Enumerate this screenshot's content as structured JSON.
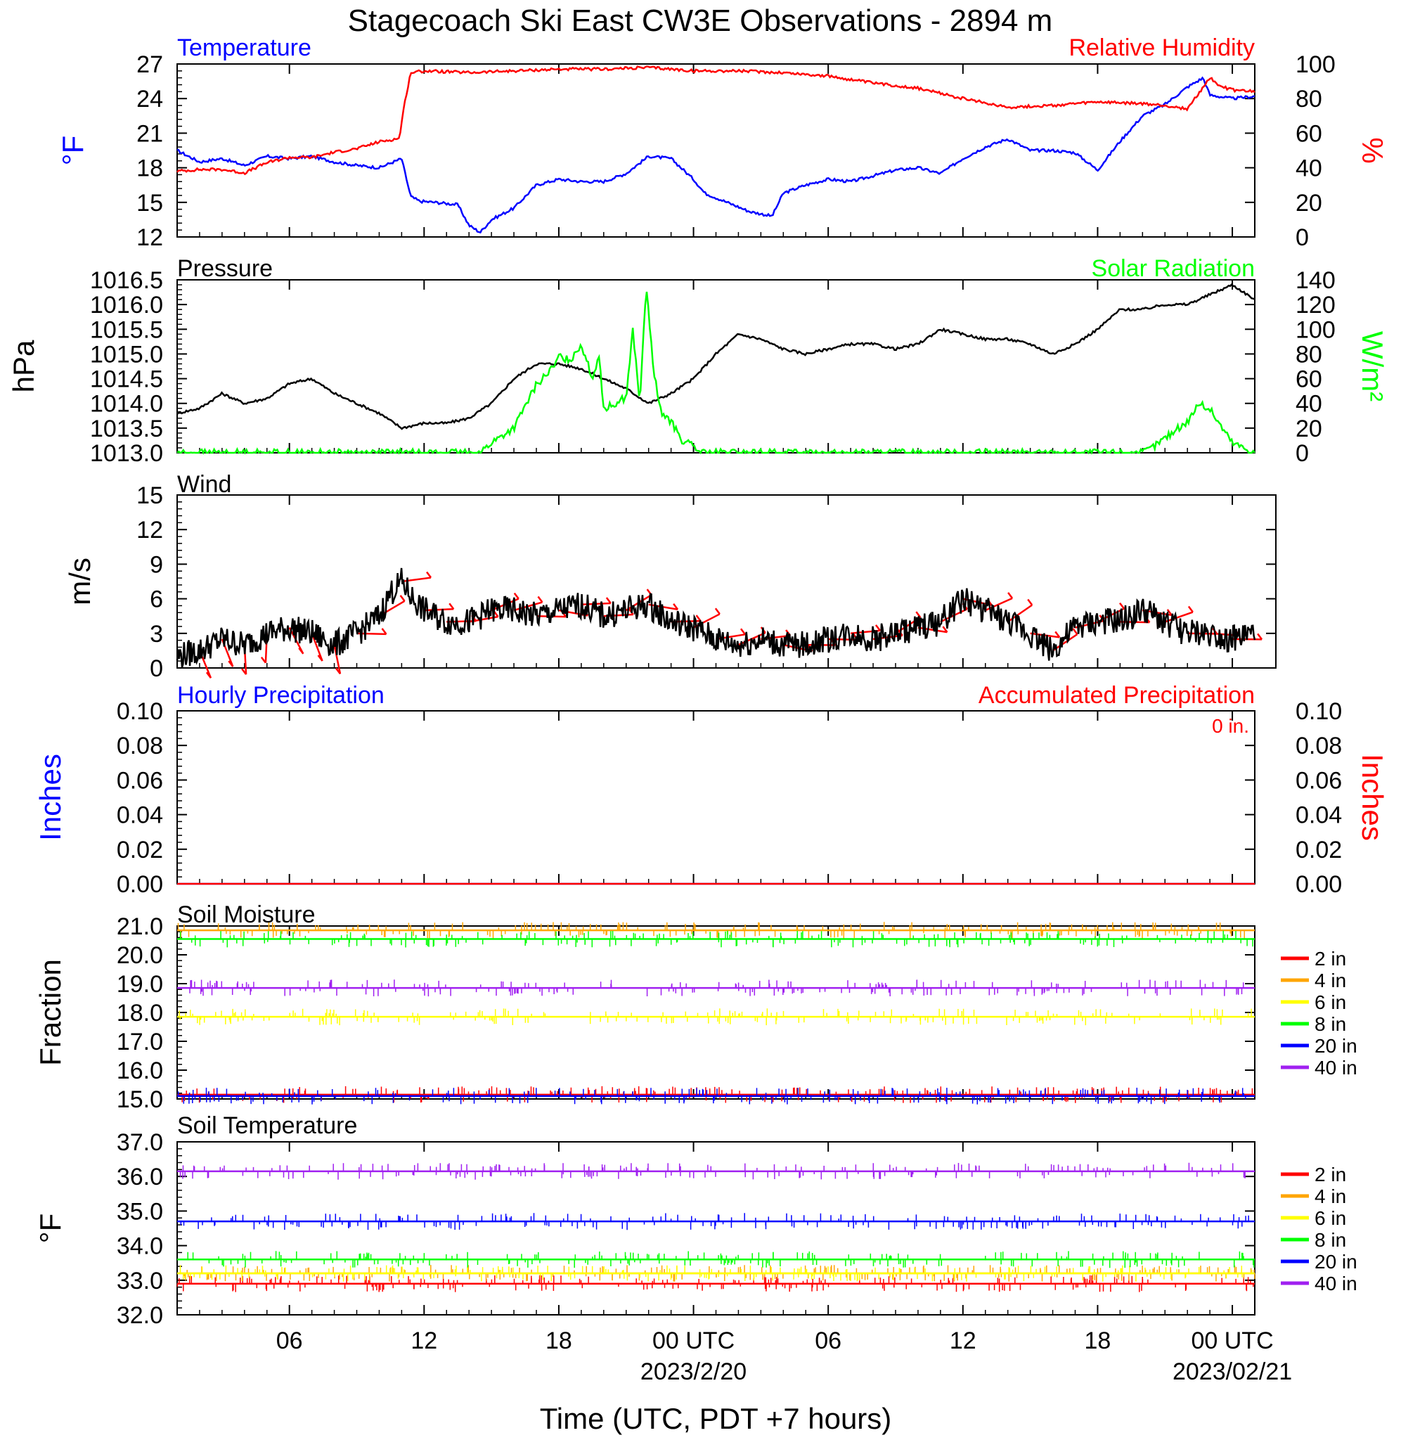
{
  "title": "Stagecoach Ski East CW3E Observations - 2894 m",
  "xlabel": "Time (UTC, PDT +7 hours)",
  "time_axis": {
    "start_hour": 1,
    "end_hour": 49,
    "tick_labels": [
      "06",
      "12",
      "18",
      "00 UTC",
      "06",
      "12",
      "18",
      "00 UTC"
    ],
    "date_labels": [
      "2023/2/20",
      "2023/02/21"
    ]
  },
  "chart_data": [
    {
      "type": "line",
      "panel": "temperature-rh",
      "title_left": "Temperature",
      "title_right": "Relative Humidity",
      "ylabel_left": "°F",
      "ylabel_right": "%",
      "ylim": [
        12,
        27
      ],
      "yticks": [
        27,
        24,
        21,
        18,
        15,
        12
      ],
      "ylim_right": [
        0,
        100
      ],
      "yticks_right": [
        100,
        80,
        60,
        40,
        20,
        0
      ],
      "colors": {
        "temperature": "#0000ff",
        "rh": "#ff0000"
      },
      "series": [
        {
          "name": "Temperature",
          "axis": "left",
          "color": "#0000ff",
          "x": [
            1,
            2,
            3,
            4,
            5,
            6,
            7,
            8,
            9,
            10,
            11,
            11.4,
            11.8,
            12.5,
            13.5,
            14,
            14.5,
            15,
            16,
            17,
            18,
            19,
            20,
            21,
            22,
            23,
            24,
            24.5,
            25.5,
            26.5,
            27.5,
            28,
            29,
            30,
            31,
            32,
            33,
            34,
            35,
            36,
            37,
            38,
            39,
            40,
            41,
            42,
            43,
            44,
            45,
            46,
            46.7,
            47,
            48,
            49
          ],
          "y": [
            19.5,
            18.5,
            18.8,
            18.2,
            19,
            18.8,
            19,
            18.5,
            18.2,
            18,
            18.8,
            15.5,
            15.1,
            15,
            14.8,
            13,
            12.4,
            13.5,
            14.5,
            16.5,
            17,
            16.8,
            16.8,
            17.5,
            19,
            18.8,
            17,
            15.8,
            15,
            14.2,
            13.8,
            15.8,
            16.5,
            17,
            16.8,
            17.3,
            17.8,
            18,
            17.5,
            18.8,
            19.8,
            20.5,
            19.5,
            19.5,
            19.3,
            17.8,
            20.3,
            22.5,
            23.5,
            25,
            25.8,
            24.3,
            24,
            24.2
          ]
        },
        {
          "name": "Relative Humidity",
          "axis": "right",
          "color": "#ff0000",
          "x": [
            1,
            2,
            3,
            4,
            5,
            6,
            7,
            8,
            9,
            10,
            10.9,
            11.1,
            11.4,
            12,
            14,
            16,
            18,
            20,
            22,
            24,
            26,
            28,
            30,
            32,
            34,
            36,
            38,
            40,
            42,
            44,
            45,
            46,
            47,
            47.5,
            48,
            49
          ],
          "y": [
            38,
            39,
            39,
            37,
            43,
            46,
            46,
            49,
            51,
            55,
            57,
            75,
            95,
            96,
            95,
            96,
            97,
            97,
            98,
            96,
            96,
            95,
            93,
            89,
            86,
            80,
            75,
            76,
            78,
            77,
            76,
            74,
            92,
            87,
            85,
            84
          ]
        }
      ]
    },
    {
      "type": "line",
      "panel": "pressure-solar",
      "title_left": "Pressure",
      "title_right": "Solar Radiation",
      "ylabel_left": "hPa",
      "ylabel_right": "W/m²",
      "ylim": [
        1013.0,
        1016.5
      ],
      "yticks": [
        "1016.5",
        "1016.0",
        "1015.5",
        "1015.0",
        "1014.5",
        "1014.0",
        "1013.5",
        "1013.0"
      ],
      "ylim_right": [
        0,
        140
      ],
      "yticks_right": [
        140,
        120,
        100,
        80,
        60,
        40,
        20,
        0
      ],
      "series": [
        {
          "name": "Pressure",
          "axis": "left",
          "color": "#000000",
          "x": [
            1,
            2,
            3,
            4,
            5,
            6,
            7,
            8,
            9,
            10,
            11,
            12,
            13,
            14,
            15,
            16,
            17,
            18,
            19,
            20,
            21,
            22,
            23,
            24,
            25,
            26,
            27,
            28,
            29,
            30,
            31,
            32,
            33,
            34,
            35,
            36,
            37,
            38,
            39,
            40,
            41,
            42,
            43,
            44,
            45,
            46,
            47,
            48,
            49
          ],
          "y": [
            1013.8,
            1013.9,
            1014.2,
            1014.0,
            1014.1,
            1014.4,
            1014.5,
            1014.2,
            1014.0,
            1013.8,
            1013.5,
            1013.6,
            1013.6,
            1013.7,
            1014.0,
            1014.5,
            1014.8,
            1014.8,
            1014.7,
            1014.5,
            1014.3,
            1014.0,
            1014.2,
            1014.5,
            1015.0,
            1015.4,
            1015.3,
            1015.1,
            1015.0,
            1015.1,
            1015.2,
            1015.2,
            1015.1,
            1015.2,
            1015.5,
            1015.4,
            1015.3,
            1015.3,
            1015.2,
            1015.0,
            1015.2,
            1015.5,
            1015.9,
            1015.9,
            1016.0,
            1016.0,
            1016.2,
            1016.4,
            1016.1
          ]
        },
        {
          "name": "Solar Radiation",
          "axis": "right",
          "color": "#00ff00",
          "x": [
            1,
            14.5,
            15,
            16,
            17,
            17.8,
            18,
            18.5,
            19,
            19.5,
            19.8,
            20,
            20.5,
            21,
            21.3,
            21.6,
            21.9,
            22.2,
            22.5,
            23,
            23.5,
            24,
            24.3,
            25,
            44,
            44.5,
            45,
            46,
            46.5,
            47,
            48,
            49
          ],
          "y": [
            0,
            0,
            8,
            20,
            55,
            70,
            78,
            75,
            88,
            60,
            80,
            35,
            40,
            45,
            100,
            40,
            135,
            70,
            35,
            25,
            10,
            5,
            0,
            0,
            0,
            5,
            12,
            25,
            40,
            35,
            8,
            0
          ]
        }
      ]
    },
    {
      "type": "line",
      "panel": "wind",
      "title": "Wind",
      "ylabel": "m/s",
      "ylim": [
        0,
        15
      ],
      "yticks": [
        15,
        12,
        9,
        6,
        3,
        0
      ],
      "series": [
        {
          "name": "Wind",
          "color": "#000000",
          "x": [
            1,
            2,
            3,
            4,
            5,
            6,
            7,
            8,
            9,
            10,
            10.5,
            11,
            11.5,
            12,
            13,
            14,
            15,
            16,
            17,
            18,
            19,
            20,
            21,
            22,
            23,
            24,
            25,
            26,
            27,
            28,
            29,
            30,
            31,
            32,
            33,
            34,
            35,
            36,
            36.5,
            37,
            38,
            39,
            40,
            41,
            42,
            43,
            44,
            45,
            46,
            47,
            48,
            49
          ],
          "y": [
            1,
            1.5,
            2.5,
            2,
            3,
            3.5,
            3,
            2,
            3,
            4.5,
            6.5,
            7.5,
            6,
            5,
            4,
            4,
            5,
            5,
            4.5,
            5,
            5.5,
            4.5,
            5,
            5.5,
            4,
            3.5,
            2.5,
            2,
            2.5,
            2,
            2,
            2.5,
            3,
            2.5,
            3,
            3.5,
            4,
            6,
            5.5,
            5,
            4,
            3,
            1.5,
            3.5,
            4,
            4,
            5,
            4,
            3,
            3,
            2.5,
            3
          ]
        }
      ]
    },
    {
      "type": "line",
      "panel": "precipitation",
      "title_left": "Hourly Precipitation",
      "title_right": "Accumulated Precipitation",
      "annotation": "0 in.",
      "ylabel_left": "Inches",
      "ylabel_right": "Inches",
      "ylim": [
        0,
        0.1
      ],
      "yticks": [
        "0.10",
        "0.08",
        "0.06",
        "0.04",
        "0.02",
        "0.00"
      ],
      "series": [
        {
          "name": "Hourly Precipitation",
          "color": "#0000ff",
          "x": [
            1,
            49
          ],
          "y": [
            0,
            0
          ]
        },
        {
          "name": "Accumulated Precipitation",
          "color": "#ff0000",
          "x": [
            1,
            49
          ],
          "y": [
            0,
            0
          ]
        }
      ]
    },
    {
      "type": "line",
      "panel": "soil-moisture",
      "title": "Soil Moisture",
      "ylabel": "Fraction",
      "ylim": [
        15.0,
        21.0
      ],
      "yticks": [
        "21.0",
        "20.0",
        "19.0",
        "18.0",
        "17.0",
        "16.0",
        "15.0"
      ],
      "legend": [
        "2 in",
        "4 in",
        "6 in",
        "8 in",
        "20 in",
        "40 in"
      ],
      "series": [
        {
          "name": "2 in",
          "color": "#ff0000",
          "level": 15.15
        },
        {
          "name": "4 in",
          "color": "#ffa500",
          "level": 20.85
        },
        {
          "name": "6 in",
          "color": "#ffff00",
          "level": 17.85
        },
        {
          "name": "8 in",
          "color": "#00ff00",
          "level": 20.55
        },
        {
          "name": "20 in",
          "color": "#0000ff",
          "level": 15.1
        },
        {
          "name": "40 in",
          "color": "#a020f0",
          "level": 18.85
        }
      ]
    },
    {
      "type": "line",
      "panel": "soil-temperature",
      "title": "Soil Temperature",
      "ylabel": "°F",
      "ylim": [
        32.0,
        37.0
      ],
      "yticks": [
        "37.0",
        "36.0",
        "35.0",
        "34.0",
        "33.0",
        "32.0"
      ],
      "legend": [
        "2 in",
        "4 in",
        "6 in",
        "8 in",
        "20 in",
        "40 in"
      ],
      "series": [
        {
          "name": "2 in",
          "color": "#ff0000",
          "level": 32.9
        },
        {
          "name": "4 in",
          "color": "#ffa500",
          "level": 33.2
        },
        {
          "name": "6 in",
          "color": "#ffff00",
          "level": 33.2
        },
        {
          "name": "8 in",
          "color": "#00ff00",
          "level": 33.6
        },
        {
          "name": "20 in",
          "color": "#0000ff",
          "level": 34.7
        },
        {
          "name": "40 in",
          "color": "#a020f0",
          "level": 36.15
        }
      ]
    }
  ]
}
